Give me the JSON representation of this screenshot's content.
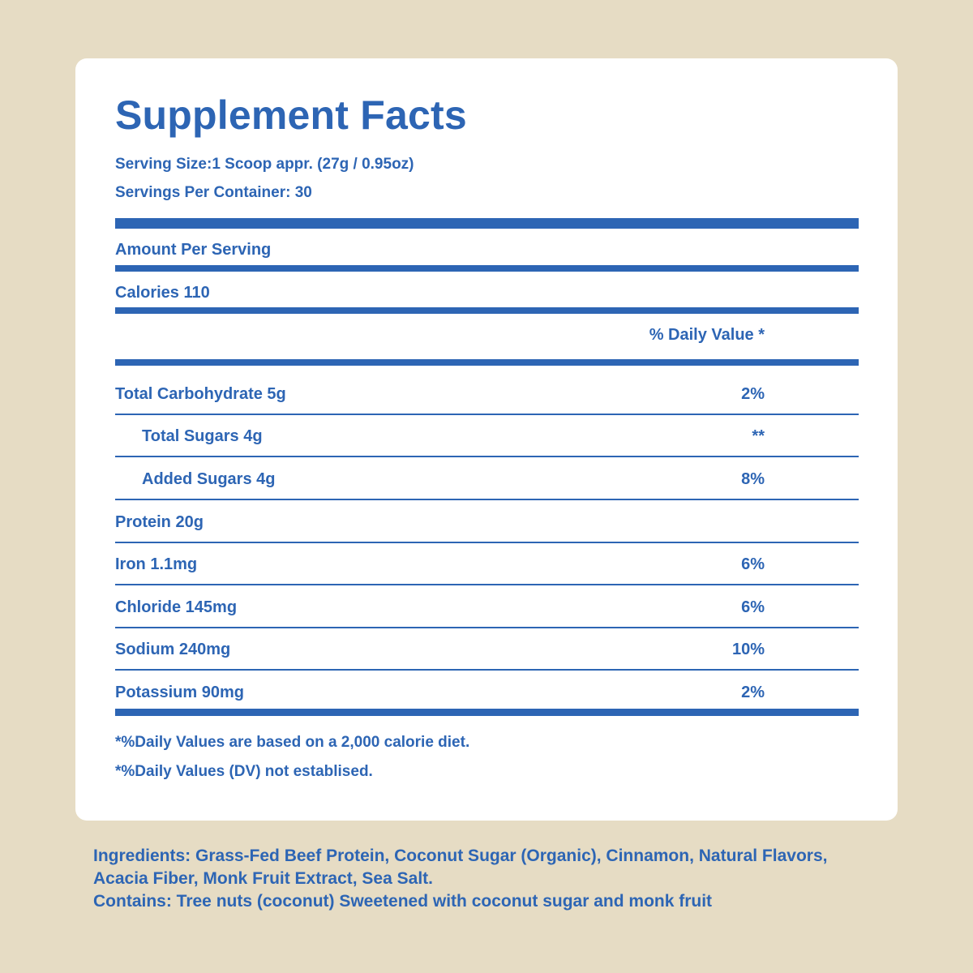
{
  "panel": {
    "title": "Supplement Facts",
    "serving_size": "Serving Size:1 Scoop appr. (27g / 0.95oz)",
    "servings_per_container": "Servings Per Container: 30",
    "amount_per_serving": "Amount Per Serving",
    "calories": "Calories 110",
    "daily_value_header": "% Daily Value *",
    "nutrients": [
      {
        "name": "Total Carbohydrate 5g",
        "dv": "2%"
      },
      {
        "name": "Total Sugars 4g",
        "dv": "**"
      },
      {
        "name": "Added Sugars 4g",
        "dv": "8%"
      },
      {
        "name": "Protein 20g",
        "dv": ""
      },
      {
        "name": "Iron 1.1mg",
        "dv": "6%"
      },
      {
        "name": "Chloride 145mg",
        "dv": "6%"
      },
      {
        "name": "Sodium 240mg",
        "dv": "10%"
      },
      {
        "name": "Potassium 90mg",
        "dv": "2%"
      }
    ],
    "footnotes": [
      "*%Daily Values are based on a 2,000 calorie diet.",
      "*%Daily Values (DV) not establised."
    ]
  },
  "ingredients": {
    "line1": "Ingredients: Grass-Fed Beef Protein, Coconut Sugar (Organic), Cinnamon, Natural Flavors,",
    "line2": "Acacia Fiber, Monk Fruit Extract, Sea Salt.",
    "contains": "Contains: Tree nuts (coconut) Sweetened with coconut sugar and monk fruit"
  },
  "colors": {
    "background": "#E6DCC4",
    "panel": "#FFFFFF",
    "text": "#2D65B4"
  }
}
